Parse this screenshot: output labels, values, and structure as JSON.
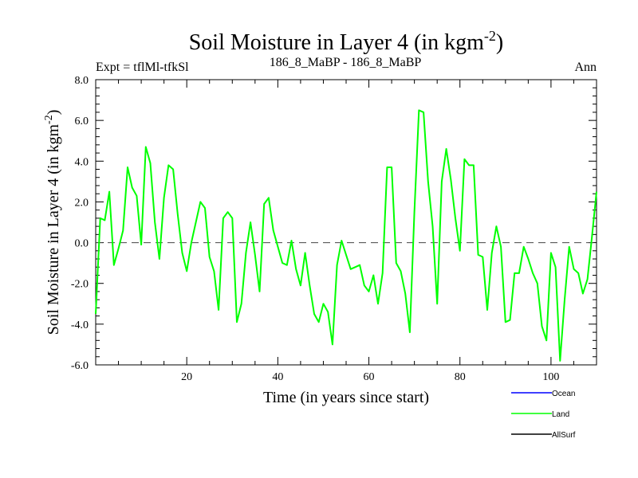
{
  "chart_data": {
    "type": "line",
    "title_main": "Soil Moisture in Layer 4 (in kgm",
    "title_sup": "-2",
    "title_close": ")",
    "subtitle_left": "Expt = tflMl-tfkSl",
    "subtitle_center": "186_8_MaBP - 186_8_MaBP",
    "subtitle_right": "Ann",
    "xlabel": "Time (in years since start)",
    "ylabel_main": "Soil Moisture in Layer 4 (in kgm",
    "ylabel_sup": "-2",
    "ylabel_close": ")",
    "xlim": [
      0,
      110
    ],
    "ylim": [
      -6,
      8
    ],
    "x_ticks": [
      20,
      40,
      60,
      80,
      100
    ],
    "x_tick_labels": [
      "20",
      "40",
      "60",
      "80",
      "100"
    ],
    "y_ticks": [
      -6,
      -4,
      -2,
      0,
      2,
      4,
      6,
      8
    ],
    "y_tick_labels": [
      "-6.0",
      "-4.0",
      "-2.0",
      "0.0",
      "2.0",
      "4.0",
      "6.0",
      "8.0"
    ],
    "reference_line": 0,
    "legend": [
      {
        "name": "Ocean",
        "color": "#0000ff"
      },
      {
        "name": "Land",
        "color": "#00ff00"
      },
      {
        "name": "AllSurf",
        "color": "#000000"
      }
    ],
    "series": [
      {
        "name": "Land",
        "color": "#00ff00",
        "x": [
          0,
          1,
          2,
          3,
          4,
          5,
          6,
          7,
          8,
          9,
          10,
          11,
          12,
          13,
          14,
          15,
          16,
          17,
          18,
          19,
          20,
          21,
          22,
          23,
          24,
          25,
          26,
          27,
          28,
          29,
          30,
          31,
          32,
          33,
          34,
          35,
          36,
          37,
          38,
          39,
          40,
          41,
          42,
          43,
          44,
          45,
          46,
          47,
          48,
          49,
          50,
          51,
          52,
          53,
          54,
          55,
          56,
          57,
          58,
          59,
          60,
          61,
          62,
          63,
          64,
          65,
          66,
          67,
          68,
          69,
          70,
          71,
          72,
          73,
          74,
          75,
          76,
          77,
          78,
          79,
          80,
          81,
          82,
          83,
          84,
          85,
          86,
          87,
          88,
          89,
          90,
          91,
          92,
          93,
          94,
          95,
          96,
          97,
          98,
          99,
          100,
          101,
          102,
          103,
          104,
          105,
          106,
          107,
          108,
          109,
          110
        ],
        "values": [
          -3.5,
          1.2,
          1.1,
          2.5,
          -1.1,
          -0.3,
          0.6,
          3.7,
          2.7,
          2.3,
          -0.1,
          4.7,
          3.9,
          1.0,
          -0.8,
          2.2,
          3.8,
          3.6,
          1.4,
          -0.5,
          -1.4,
          0.0,
          1.0,
          2.0,
          1.7,
          -0.7,
          -1.4,
          -3.3,
          1.2,
          1.5,
          1.2,
          -3.9,
          -3.0,
          -0.5,
          1.0,
          -0.6,
          -2.4,
          1.9,
          2.2,
          0.6,
          -0.2,
          -1.0,
          -1.1,
          0.1,
          -1.3,
          -2.1,
          -0.5,
          -2.1,
          -3.5,
          -3.9,
          -3.0,
          -3.4,
          -5.0,
          -1.1,
          0.1,
          -0.6,
          -1.3,
          -1.2,
          -1.1,
          -2.1,
          -2.4,
          -1.6,
          -3.0,
          -1.5,
          3.7,
          3.7,
          -1.0,
          -1.4,
          -2.5,
          -4.4,
          1.5,
          6.5,
          6.4,
          3.0,
          0.8,
          -3.0,
          3.0,
          4.6,
          3.1,
          1.2,
          -0.4,
          4.1,
          3.8,
          3.8,
          -0.6,
          -0.7,
          -3.3,
          -0.5,
          0.8,
          -0.2,
          -3.9,
          -3.8,
          -1.5,
          -1.5,
          -0.2,
          -0.8,
          -1.5,
          -2.0,
          -4.1,
          -4.8,
          -0.5,
          -1.2,
          -5.8,
          -2.8,
          -0.2,
          -1.3,
          -1.5,
          -2.5,
          -1.8,
          0.3,
          2.5
        ]
      }
    ]
  }
}
